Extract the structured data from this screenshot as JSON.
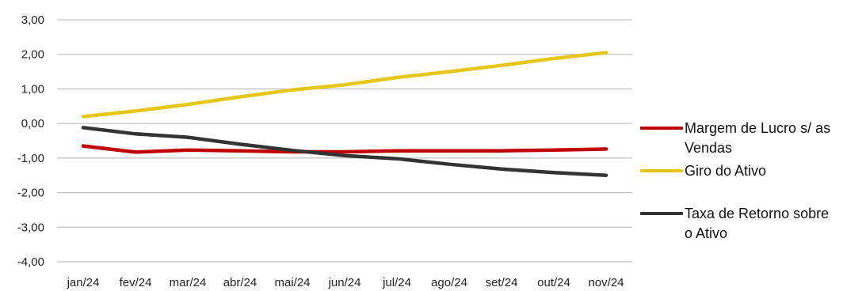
{
  "chart_data": {
    "type": "line",
    "categories": [
      "jan/24",
      "fev/24",
      "mar/24",
      "abr/24",
      "mai/24",
      "jun/24",
      "jul/24",
      "ago/24",
      "set/24",
      "out/24",
      "nov/24"
    ],
    "ylim": [
      -4,
      3
    ],
    "yticks": [
      3,
      2,
      1,
      0,
      -1,
      -2,
      -3,
      -4
    ],
    "ytick_labels": [
      "3,00",
      "2,00",
      "1,00",
      "0,00",
      "-1,00",
      "-2,00",
      "-3,00",
      "-4,00"
    ],
    "grid": true,
    "legend_position": "right",
    "series": [
      {
        "name": "Margem de Lucro s/ as Vendas",
        "color": "#c00000",
        "values": [
          -0.65,
          -0.83,
          -0.77,
          -0.79,
          -0.82,
          -0.82,
          -0.79,
          -0.79,
          -0.79,
          -0.77,
          -0.74
        ]
      },
      {
        "name": "Giro do Ativo",
        "color": "#e6c619",
        "values": [
          0.2,
          0.36,
          0.55,
          0.77,
          0.97,
          1.12,
          1.33,
          1.5,
          1.68,
          1.88,
          2.05
        ]
      },
      {
        "name": "Taxa de Retorno sobre o Ativo",
        "color": "#333333",
        "values": [
          -0.12,
          -0.3,
          -0.4,
          -0.6,
          -0.78,
          -0.93,
          -1.02,
          -1.18,
          -1.32,
          -1.42,
          -1.5
        ]
      }
    ]
  }
}
